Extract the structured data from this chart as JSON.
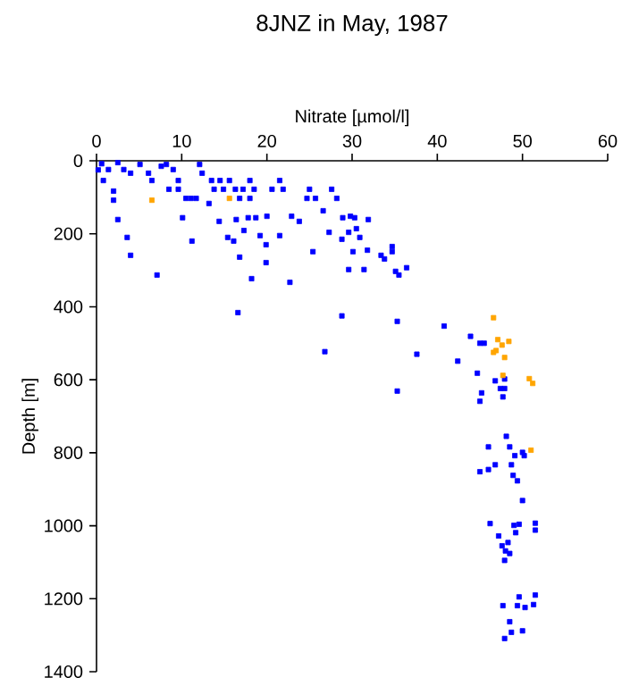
{
  "chart_data": {
    "type": "scatter",
    "title": "8JNZ in May, 1987",
    "xlabel": "Nitrate [µmol/l]",
    "ylabel": "Depth [m]",
    "xlim": [
      0,
      60
    ],
    "ylim": [
      1400,
      0
    ],
    "xticks": [
      0,
      10,
      20,
      30,
      40,
      50,
      60
    ],
    "yticks": [
      0,
      200,
      400,
      600,
      800,
      1000,
      1200,
      1400
    ],
    "marker": "square",
    "series": [
      {
        "color": "#0000ff",
        "x": [
          0.2,
          0.6,
          0.8,
          1.4,
          2.0,
          2.0,
          2.5,
          3.6,
          4.0,
          7.1,
          2.5,
          3.2,
          4.0,
          5.1,
          6.1,
          6.5,
          7.6,
          8.2,
          8.5,
          9.0,
          9.6,
          9.6,
          10.1,
          10.5,
          11.1,
          11.7,
          12.1,
          12.4,
          13.2,
          13.5,
          13.8,
          14.4,
          14.5,
          14.9,
          15.4,
          15.6,
          16.1,
          16.3,
          16.4,
          16.6,
          16.8,
          16.8,
          17.2,
          17.3,
          17.8,
          18.0,
          18.0,
          18.2,
          18.5,
          18.7,
          19.2,
          19.9,
          19.9,
          20.0,
          20.6,
          21.5,
          21.5,
          21.9,
          22.9,
          23.8,
          22.7,
          25.0,
          24.7,
          25.7,
          25.4,
          26.6,
          26.8,
          27.3,
          27.6,
          28.2,
          28.9,
          28.8,
          28.8,
          29.6,
          29.8,
          29.6,
          30.1,
          30.3,
          30.5,
          30.9,
          31.4,
          31.8,
          31.9,
          33.4,
          33.8,
          34.7,
          34.7,
          35.1,
          35.5,
          35.3,
          35.3,
          36.4,
          11.2,
          40.8,
          43.9,
          37.6,
          42.4,
          45.0,
          45.5,
          44.7,
          46.8,
          47.9,
          47.4,
          47.9,
          45.2,
          47.7,
          45.0,
          48.1,
          46.0,
          48.5,
          50.0,
          49.1,
          50.2,
          46.8,
          48.7,
          45.0,
          46.0,
          48.9,
          49.4,
          50.0,
          46.2,
          49.0,
          49.6,
          51.5,
          51.5,
          47.2,
          49.2,
          48.3,
          47.6,
          48.0,
          48.5,
          47.9,
          51.5,
          49.6,
          47.7,
          49.4,
          50.3,
          51.3,
          48.5,
          50.0,
          48.7,
          47.9
        ],
        "values": [
          25,
          8,
          54,
          24,
          83,
          108,
          161,
          210,
          259,
          313,
          5,
          24,
          34,
          10,
          34,
          54,
          15,
          10,
          78,
          24,
          54,
          78,
          156,
          103,
          103,
          103,
          10,
          34,
          117,
          54,
          78,
          166,
          54,
          78,
          210,
          54,
          220,
          78,
          161,
          416,
          264,
          103,
          78,
          191,
          156,
          103,
          54,
          323,
          78,
          156,
          205,
          230,
          279,
          152,
          78,
          205,
          54,
          78,
          152,
          166,
          333,
          78,
          103,
          103,
          249,
          137,
          523,
          196,
          78,
          103,
          156,
          215,
          425,
          196,
          152,
          298,
          249,
          156,
          186,
          210,
          298,
          245,
          161,
          259,
          269,
          235,
          249,
          303,
          313,
          440,
          631,
          293,
          220,
          453,
          481,
          530,
          549,
          500,
          500,
          582,
          603,
          598,
          624,
          624,
          636,
          647,
          659,
          755,
          784,
          784,
          799,
          808,
          808,
          833,
          833,
          852,
          846,
          862,
          877,
          931,
          994,
          999,
          996,
          993,
          1012,
          1028,
          1019,
          1046,
          1055,
          1069,
          1076,
          1095,
          1190,
          1195,
          1219,
          1219,
          1224,
          1216,
          1263,
          1288,
          1292,
          1309
        ]
      },
      {
        "color": "#ffa500",
        "x": [
          6.5,
          15.6,
          46.6,
          47.1,
          48.4,
          47.6,
          46.9,
          46.6,
          47.9,
          47.7,
          50.8,
          51.2,
          51.0
        ],
        "values": [
          108,
          103,
          430,
          490,
          495,
          505,
          520,
          525,
          539,
          588,
          597,
          610,
          793
        ]
      }
    ]
  }
}
